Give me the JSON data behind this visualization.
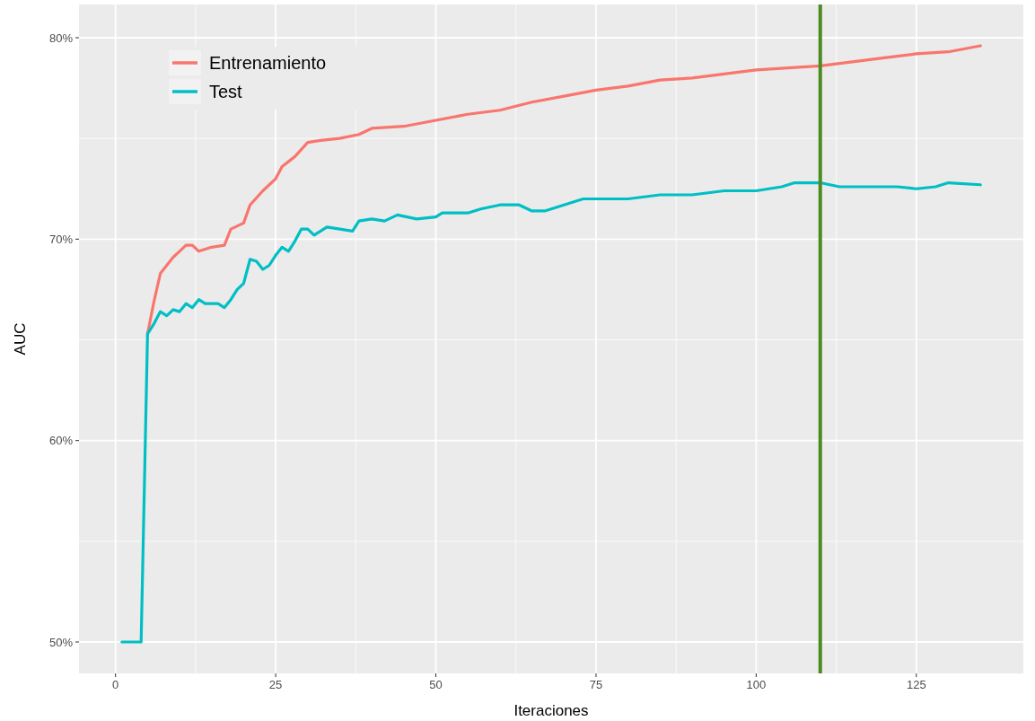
{
  "chart_data": {
    "type": "line",
    "xlabel": "Iteraciones",
    "ylabel": "AUC",
    "xlim": [
      -5.7,
      141.7
    ],
    "ylim": [
      0.4844,
      0.8165
    ],
    "xticks": [
      0,
      25,
      50,
      75,
      100,
      125
    ],
    "yticks": [
      {
        "value": 0.5,
        "label": "50%"
      },
      {
        "value": 0.6,
        "label": "60%"
      },
      {
        "value": 0.7,
        "label": "70%"
      },
      {
        "value": 0.8,
        "label": "80%"
      }
    ],
    "grid": true,
    "legend": "top left",
    "line_style": "solid",
    "series": [
      {
        "name": "Entrenamiento",
        "color": "#f8766d",
        "x": [
          5,
          6,
          7,
          8,
          9,
          10,
          11,
          12,
          13,
          15,
          17,
          18,
          20,
          21,
          23,
          25,
          26,
          28,
          30,
          32,
          35,
          38,
          40,
          45,
          50,
          55,
          60,
          65,
          70,
          75,
          80,
          85,
          90,
          95,
          100,
          105,
          110,
          115,
          120,
          125,
          130,
          135
        ],
        "values": [
          0.653,
          0.669,
          0.683,
          0.687,
          0.691,
          0.694,
          0.697,
          0.697,
          0.694,
          0.696,
          0.697,
          0.705,
          0.708,
          0.717,
          0.724,
          0.73,
          0.736,
          0.741,
          0.748,
          0.749,
          0.75,
          0.752,
          0.755,
          0.756,
          0.759,
          0.762,
          0.764,
          0.768,
          0.771,
          0.774,
          0.776,
          0.779,
          0.78,
          0.782,
          0.784,
          0.785,
          0.786,
          0.788,
          0.79,
          0.792,
          0.793,
          0.796
        ]
      },
      {
        "name": "Test",
        "color": "#00bfc4",
        "x": [
          1,
          2,
          3,
          4,
          5,
          6,
          7,
          8,
          9,
          10,
          11,
          12,
          13,
          14,
          16,
          17,
          18,
          19,
          20,
          21,
          22,
          23,
          24,
          25,
          26,
          27,
          28,
          29,
          30,
          31,
          33,
          35,
          37,
          38,
          40,
          42,
          44,
          47,
          50,
          51,
          55,
          57,
          60,
          63,
          65,
          67,
          70,
          73,
          76,
          80,
          85,
          90,
          95,
          100,
          104,
          106,
          110,
          113,
          115,
          118,
          120,
          122,
          125,
          128,
          130,
          135
        ],
        "values": [
          0.5,
          0.5,
          0.5,
          0.5,
          0.653,
          0.658,
          0.664,
          0.662,
          0.665,
          0.664,
          0.668,
          0.666,
          0.67,
          0.668,
          0.668,
          0.666,
          0.67,
          0.675,
          0.678,
          0.69,
          0.689,
          0.685,
          0.687,
          0.692,
          0.696,
          0.694,
          0.699,
          0.705,
          0.705,
          0.702,
          0.706,
          0.705,
          0.704,
          0.709,
          0.71,
          0.709,
          0.712,
          0.71,
          0.711,
          0.713,
          0.713,
          0.715,
          0.717,
          0.717,
          0.714,
          0.714,
          0.717,
          0.72,
          0.72,
          0.72,
          0.722,
          0.722,
          0.724,
          0.724,
          0.726,
          0.728,
          0.728,
          0.726,
          0.726,
          0.726,
          0.726,
          0.726,
          0.725,
          0.726,
          0.728,
          0.727
        ]
      }
    ],
    "ref_lines": [
      {
        "axis": "x",
        "value": 110,
        "color": "#4d8b1f",
        "line_style": "solid"
      }
    ]
  }
}
